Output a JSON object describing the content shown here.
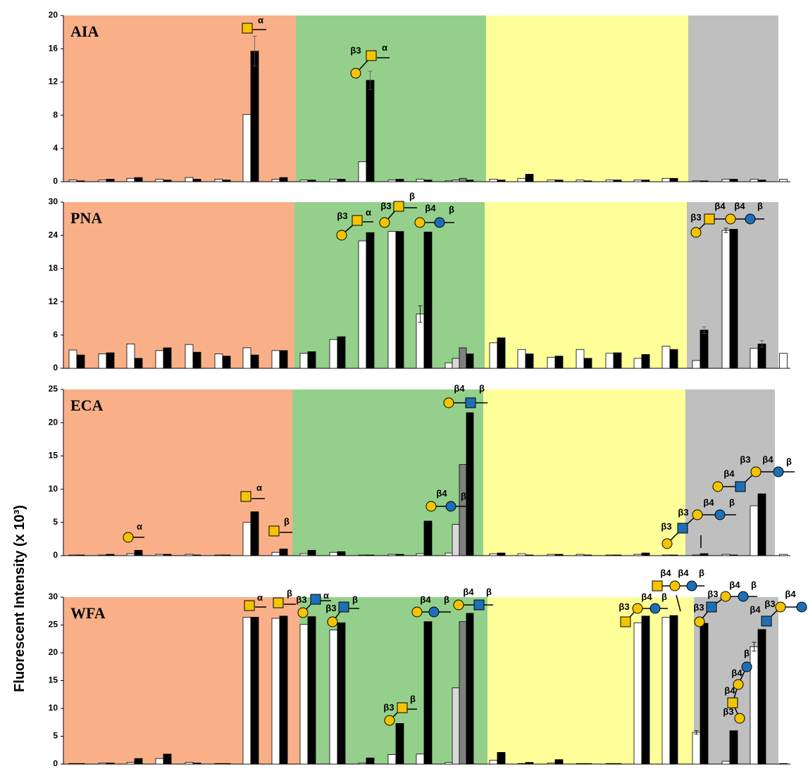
{
  "ylabel": "Fluorescent Intensity (x 10³)",
  "chart_data": [
    {
      "type": "bar",
      "title": "AIA",
      "ylim": [
        0,
        20
      ],
      "yticks": [
        0,
        4,
        8,
        12,
        16,
        20
      ],
      "categories": [
        null,
        null,
        null,
        null,
        null,
        null,
        null,
        null,
        null,
        null,
        null,
        null,
        null,
        null,
        null,
        null,
        null,
        null,
        null,
        null,
        null,
        null,
        null,
        null,
        null
      ],
      "series": [
        {
          "color": "#ffffff",
          "values": [
            0.2,
            0.2,
            0.4,
            0.3,
            0.5,
            0.3,
            8.1,
            0.3,
            0.2,
            0.3,
            2.4,
            0.2,
            0.3,
            0.1,
            0.3,
            0.4,
            0.2,
            0.2,
            0.2,
            0.2,
            0.4,
            0.1,
            0.3,
            0.3,
            0.3
          ]
        },
        {
          "color": "#d9d9d9",
          "values": [
            null,
            null,
            null,
            null,
            null,
            null,
            null,
            null,
            null,
            null,
            null,
            null,
            null,
            0.2,
            null,
            null,
            null,
            null,
            null,
            null,
            null,
            null,
            null,
            null,
            null
          ]
        },
        {
          "color": "#808080",
          "values": [
            null,
            null,
            null,
            null,
            null,
            null,
            null,
            null,
            null,
            null,
            null,
            null,
            null,
            0.4,
            null,
            null,
            null,
            null,
            null,
            null,
            null,
            null,
            null,
            null,
            null
          ]
        },
        {
          "color": "#000000",
          "values": [
            0.1,
            0.3,
            0.5,
            0.2,
            0.3,
            0.2,
            15.7,
            0.5,
            0.2,
            0.3,
            12.2,
            0.3,
            0.2,
            0.2,
            0.2,
            0.9,
            0.2,
            0.1,
            0.2,
            0.2,
            0.4,
            0.1,
            0.3,
            0.2,
            null
          ],
          "errors": [
            null,
            null,
            null,
            null,
            null,
            null,
            1.8,
            null,
            null,
            null,
            1.1,
            null,
            null,
            null,
            null,
            null,
            null,
            null,
            null,
            null,
            null,
            null,
            null,
            null,
            null
          ]
        }
      ],
      "annotations": [
        [
          "α"
        ],
        [
          "β3",
          "α"
        ]
      ]
    },
    {
      "type": "bar",
      "title": "PNA",
      "ylim": [
        0,
        30
      ],
      "yticks": [
        0,
        6,
        12,
        18,
        24,
        30
      ],
      "categories": [
        null,
        null,
        null,
        null,
        null,
        null,
        null,
        null,
        null,
        null,
        null,
        null,
        null,
        null,
        null,
        null,
        null,
        null,
        null,
        null,
        null,
        null,
        null,
        null,
        null
      ],
      "series": [
        {
          "color": "#ffffff",
          "values": [
            3.3,
            2.6,
            4.4,
            3.2,
            4.3,
            2.6,
            3.7,
            3.2,
            2.7,
            5.2,
            23,
            24.7,
            9.8,
            1.0,
            4.6,
            3.4,
            2.0,
            3.4,
            2.7,
            1.8,
            4.0,
            1.4,
            24.9,
            3.6,
            2.7
          ],
          "errors": [
            null,
            null,
            null,
            null,
            null,
            null,
            null,
            null,
            null,
            null,
            null,
            null,
            1.5,
            null,
            null,
            null,
            null,
            null,
            null,
            null,
            null,
            null,
            0.4,
            null,
            null
          ]
        },
        {
          "color": "#d9d9d9",
          "values": [
            null,
            null,
            null,
            null,
            null,
            null,
            null,
            null,
            null,
            null,
            null,
            null,
            null,
            1.8,
            null,
            null,
            null,
            null,
            null,
            null,
            null,
            null,
            null,
            null,
            null
          ]
        },
        {
          "color": "#808080",
          "values": [
            null,
            null,
            null,
            null,
            null,
            null,
            null,
            null,
            null,
            null,
            null,
            null,
            null,
            3.7,
            null,
            null,
            null,
            null,
            null,
            null,
            null,
            null,
            null,
            null,
            null
          ]
        },
        {
          "color": "#000000",
          "values": [
            2.4,
            2.8,
            1.8,
            3.7,
            2.9,
            2.2,
            2.4,
            3.2,
            3.0,
            5.7,
            24.5,
            24.7,
            24.6,
            2.6,
            5.5,
            2.6,
            2.2,
            1.8,
            2.8,
            2.5,
            3.4,
            6.9,
            25.1,
            4.4,
            null
          ],
          "errors": [
            null,
            null,
            null,
            null,
            null,
            null,
            null,
            null,
            null,
            null,
            null,
            null,
            null,
            null,
            null,
            null,
            null,
            null,
            null,
            null,
            null,
            0.6,
            null,
            0.6,
            null
          ]
        }
      ],
      "annotations": [
        [
          "β3",
          "α"
        ],
        [
          "β3",
          "β"
        ],
        [
          "β4",
          "β"
        ],
        [
          "β3",
          "β4",
          "β4",
          "β"
        ]
      ]
    },
    {
      "type": "bar",
      "title": "ECA",
      "ylim": [
        0,
        25
      ],
      "yticks": [
        0,
        5,
        10,
        15,
        20,
        25
      ],
      "categories": [
        null,
        null,
        null,
        null,
        null,
        null,
        null,
        null,
        null,
        null,
        null,
        null,
        null,
        null,
        null,
        null,
        null,
        null,
        null,
        null,
        null,
        null,
        null,
        null,
        null
      ],
      "series": [
        {
          "color": "#ffffff",
          "values": [
            0.1,
            0.1,
            0.3,
            0.2,
            0.2,
            0.1,
            5.0,
            0.5,
            0.3,
            0.5,
            0.1,
            0.2,
            0.3,
            0.4,
            0.3,
            0.3,
            0.2,
            0.2,
            0.1,
            0.2,
            0.1,
            0.1,
            0.2,
            7.5,
            0.2
          ]
        },
        {
          "color": "#d9d9d9",
          "values": [
            null,
            null,
            null,
            null,
            null,
            null,
            null,
            null,
            null,
            null,
            null,
            null,
            null,
            4.7,
            null,
            null,
            null,
            null,
            null,
            null,
            null,
            null,
            null,
            null,
            null
          ]
        },
        {
          "color": "#808080",
          "values": [
            null,
            null,
            null,
            null,
            null,
            null,
            null,
            null,
            null,
            null,
            null,
            null,
            null,
            13.7,
            null,
            null,
            null,
            null,
            null,
            null,
            null,
            null,
            null,
            null,
            null
          ]
        },
        {
          "color": "#000000",
          "values": [
            0.1,
            0.2,
            0.8,
            0.2,
            0.1,
            0.1,
            6.6,
            1.0,
            0.8,
            0.6,
            0.1,
            0.2,
            5.2,
            21.5,
            0.4,
            0.1,
            0.2,
            0.1,
            0.1,
            0.4,
            0.1,
            0.3,
            0.1,
            9.3,
            null
          ]
        }
      ],
      "annotations": [
        [
          "α"
        ],
        [
          "α"
        ],
        [
          "β"
        ],
        [
          "β4",
          "β"
        ],
        [
          "β4",
          "β"
        ],
        [
          "β3",
          "β3",
          "β4",
          "β"
        ],
        [
          "β4",
          "β3",
          "β4",
          "β"
        ]
      ]
    },
    {
      "type": "bar",
      "title": "WFA",
      "ylim": [
        0,
        30
      ],
      "yticks": [
        0,
        5,
        10,
        15,
        20,
        25,
        30
      ],
      "categories": [
        null,
        null,
        null,
        null,
        null,
        null,
        null,
        null,
        null,
        null,
        null,
        null,
        null,
        null,
        null,
        null,
        null,
        null,
        null,
        null,
        null,
        null,
        null,
        null,
        null
      ],
      "series": [
        {
          "color": "#ffffff",
          "values": [
            0.1,
            0.2,
            0.3,
            1.0,
            0.3,
            0.1,
            26.4,
            26.2,
            25.1,
            24.1,
            0.2,
            1.7,
            1.8,
            0.3,
            0.7,
            0.1,
            0.2,
            0.1,
            0.1,
            25.4,
            26.4,
            5.7,
            0.5,
            21.1,
            0.1
          ],
          "errors": [
            null,
            null,
            null,
            null,
            null,
            null,
            null,
            null,
            null,
            null,
            null,
            null,
            null,
            null,
            null,
            null,
            null,
            null,
            null,
            null,
            null,
            0.3,
            null,
            0.8,
            null
          ]
        },
        {
          "color": "#d9d9d9",
          "values": [
            null,
            null,
            null,
            null,
            null,
            null,
            null,
            null,
            null,
            null,
            null,
            null,
            null,
            13.7,
            null,
            null,
            null,
            null,
            null,
            null,
            null,
            null,
            null,
            null,
            null
          ]
        },
        {
          "color": "#808080",
          "values": [
            null,
            null,
            null,
            null,
            null,
            null,
            null,
            null,
            null,
            null,
            null,
            null,
            null,
            25.6,
            null,
            null,
            null,
            null,
            null,
            null,
            null,
            null,
            null,
            null,
            null
          ]
        },
        {
          "color": "#000000",
          "values": [
            0.1,
            0.2,
            1.0,
            1.8,
            0.2,
            0.1,
            26.4,
            26.6,
            26.5,
            25.4,
            1.1,
            7.3,
            25.6,
            27.1,
            2.1,
            0.3,
            0.8,
            0.1,
            0.1,
            26.6,
            26.7,
            25.3,
            6.0,
            24.2,
            null
          ]
        }
      ],
      "annotations": [
        [
          "α"
        ],
        [
          "β"
        ],
        [
          "β3",
          "α"
        ],
        [
          "β3",
          "β"
        ],
        [
          "β3",
          "β"
        ],
        [
          "β4",
          "β"
        ],
        [
          "β4",
          "β"
        ],
        [
          "β3",
          "β4",
          "β"
        ],
        [
          "β4",
          "β4",
          "β"
        ],
        [
          "β3",
          "β3",
          "β4",
          "β"
        ],
        [
          "β4",
          "β3",
          "β4"
        ],
        [
          "β3",
          "β4",
          "β4",
          "β"
        ]
      ]
    }
  ]
}
